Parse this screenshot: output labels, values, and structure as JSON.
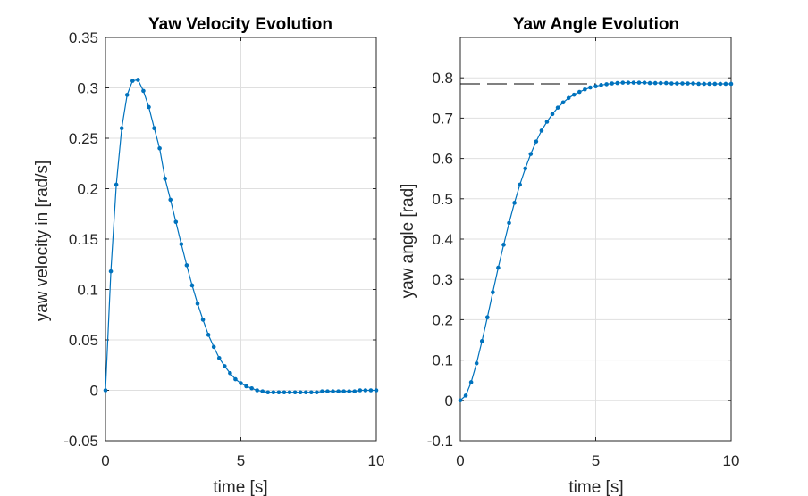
{
  "chart_data": [
    {
      "type": "line",
      "title": "Yaw Velocity Evolution",
      "xlabel": "time [s]",
      "ylabel": "yaw velocity in [rad/s]",
      "xlim": [
        0,
        10
      ],
      "ylim": [
        -0.05,
        0.35
      ],
      "xticks": [
        0,
        5,
        10
      ],
      "yticks": [
        -0.05,
        0,
        0.05,
        0.1,
        0.15,
        0.2,
        0.25,
        0.3,
        0.35
      ],
      "xtick_labels": [
        "0",
        "5",
        "10"
      ],
      "ytick_labels": [
        "-0.05",
        "0",
        "0.05",
        "0.1",
        "0.15",
        "0.2",
        "0.25",
        "0.3",
        "0.35"
      ],
      "grid": true,
      "color": "#0072BD",
      "marker": "dot",
      "series": [
        {
          "x": [
            0,
            0.2,
            0.4,
            0.6,
            0.8,
            1.0,
            1.2,
            1.4,
            1.6,
            1.8,
            2.0,
            2.2,
            2.4,
            2.6,
            2.8,
            3.0,
            3.2,
            3.4,
            3.6,
            3.8,
            4.0,
            4.2,
            4.4,
            4.6,
            4.8,
            5.0,
            5.2,
            5.4,
            5.6,
            5.8,
            6.0,
            6.2,
            6.4,
            6.6,
            6.8,
            7.0,
            7.2,
            7.4,
            7.6,
            7.8,
            8.0,
            8.2,
            8.4,
            8.6,
            8.8,
            9.0,
            9.2,
            9.4,
            9.6,
            9.8,
            10.0
          ],
          "values": [
            0,
            0.118,
            0.204,
            0.26,
            0.293,
            0.307,
            0.308,
            0.297,
            0.281,
            0.26,
            0.24,
            0.21,
            0.189,
            0.167,
            0.145,
            0.124,
            0.104,
            0.086,
            0.07,
            0.055,
            0.043,
            0.032,
            0.024,
            0.017,
            0.011,
            0.007,
            0.004,
            0.002,
            0.0,
            -0.001,
            -0.002,
            -0.002,
            -0.002,
            -0.002,
            -0.002,
            -0.002,
            -0.002,
            -0.002,
            -0.002,
            -0.002,
            -0.001,
            -0.001,
            -0.001,
            -0.001,
            -0.001,
            -0.001,
            -0.001,
            0.0,
            0.0,
            0.0,
            0.0
          ]
        }
      ]
    },
    {
      "type": "line",
      "title": "Yaw Angle Evolution",
      "xlabel": "time [s]",
      "ylabel": "yaw angle [rad]",
      "xlim": [
        0,
        10
      ],
      "ylim": [
        -0.1,
        0.9
      ],
      "xticks": [
        0,
        5,
        10
      ],
      "yticks": [
        -0.1,
        0,
        0.1,
        0.2,
        0.3,
        0.4,
        0.5,
        0.6,
        0.7,
        0.8
      ],
      "xtick_labels": [
        "0",
        "5",
        "10"
      ],
      "ytick_labels": [
        "-0.1",
        "0",
        "0.1",
        "0.2",
        "0.3",
        "0.4",
        "0.5",
        "0.6",
        "0.7",
        "0.8"
      ],
      "grid": true,
      "color": "#0072BD",
      "marker": "dot",
      "reference_line": {
        "y": 0.785,
        "x_range": [
          0,
          5
        ],
        "style": "dashed",
        "color": "#000000"
      },
      "series": [
        {
          "x": [
            0,
            0.2,
            0.4,
            0.6,
            0.8,
            1.0,
            1.2,
            1.4,
            1.6,
            1.8,
            2.0,
            2.2,
            2.4,
            2.6,
            2.8,
            3.0,
            3.2,
            3.4,
            3.6,
            3.8,
            4.0,
            4.2,
            4.4,
            4.6,
            4.8,
            5.0,
            5.2,
            5.4,
            5.6,
            5.8,
            6.0,
            6.2,
            6.4,
            6.6,
            6.8,
            7.0,
            7.2,
            7.4,
            7.6,
            7.8,
            8.0,
            8.2,
            8.4,
            8.6,
            8.8,
            9.0,
            9.2,
            9.4,
            9.6,
            9.8,
            10.0
          ],
          "values": [
            0,
            0.012,
            0.045,
            0.092,
            0.147,
            0.206,
            0.268,
            0.329,
            0.386,
            0.44,
            0.49,
            0.535,
            0.575,
            0.611,
            0.642,
            0.669,
            0.691,
            0.71,
            0.726,
            0.739,
            0.75,
            0.758,
            0.765,
            0.771,
            0.776,
            0.779,
            0.782,
            0.784,
            0.786,
            0.787,
            0.788,
            0.788,
            0.788,
            0.788,
            0.788,
            0.787,
            0.787,
            0.787,
            0.787,
            0.786,
            0.786,
            0.786,
            0.786,
            0.786,
            0.785,
            0.785,
            0.785,
            0.785,
            0.785,
            0.785,
            0.785
          ]
        }
      ]
    }
  ]
}
